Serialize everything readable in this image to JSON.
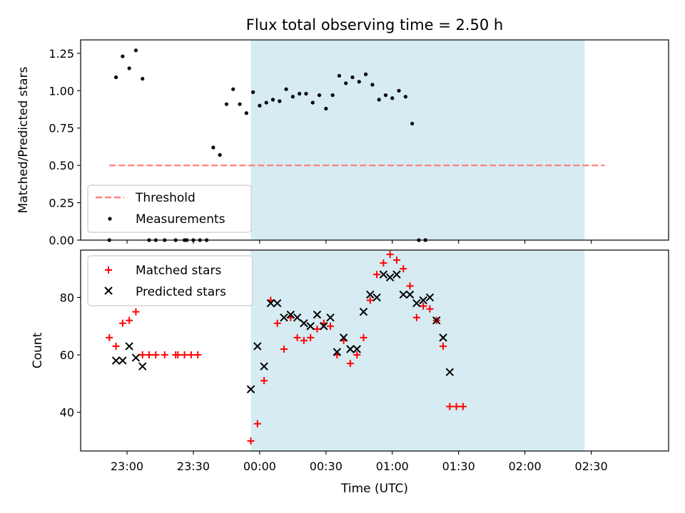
{
  "chart_data": [
    {
      "type": "scatter",
      "title": "Flux total observing time = 2.50 h",
      "xlabel": "",
      "ylabel": "Matched/Predicted stars",
      "xlim": [
        "22:39",
        "03:05"
      ],
      "ylim": [
        0,
        1.34
      ],
      "yticks": [
        0,
        0.25,
        0.5,
        0.75,
        1.0,
        1.25
      ],
      "ytick_labels": [
        "0.00",
        "0.25",
        "0.50",
        "0.75",
        "1.00",
        "1.25"
      ],
      "grid": false,
      "legend_position": "lower-left",
      "shaded_interval": [
        "23:56",
        "02:27"
      ],
      "threshold": {
        "name": "Threshold",
        "value": 0.5,
        "x_range": [
          "22:52",
          "02:36"
        ],
        "color": "#ff7f7f"
      },
      "series": [
        {
          "name": "Measurements",
          "color": "#000000",
          "points": [
            [
              "22:52",
              0.0
            ],
            [
              "22:55",
              1.09
            ],
            [
              "22:58",
              1.23
            ],
            [
              "23:01",
              1.15
            ],
            [
              "23:04",
              1.27
            ],
            [
              "23:07",
              1.08
            ],
            [
              "23:10",
              0.0
            ],
            [
              "23:13",
              0.0
            ],
            [
              "23:17",
              0.0
            ],
            [
              "23:22",
              0.0
            ],
            [
              "23:26",
              0.0
            ],
            [
              "23:27",
              0.0
            ],
            [
              "23:30",
              0.0
            ],
            [
              "23:33",
              0.0
            ],
            [
              "23:36",
              0.0
            ],
            [
              "23:39",
              0.62
            ],
            [
              "23:42",
              0.57
            ],
            [
              "23:45",
              0.91
            ],
            [
              "23:48",
              1.01
            ],
            [
              "23:51",
              0.91
            ],
            [
              "23:54",
              0.85
            ],
            [
              "23:57",
              0.99
            ],
            [
              "00:00",
              0.9
            ],
            [
              "00:03",
              0.92
            ],
            [
              "00:06",
              0.94
            ],
            [
              "00:09",
              0.93
            ],
            [
              "00:12",
              1.01
            ],
            [
              "00:15",
              0.96
            ],
            [
              "00:18",
              0.98
            ],
            [
              "00:21",
              0.98
            ],
            [
              "00:24",
              0.92
            ],
            [
              "00:27",
              0.97
            ],
            [
              "00:30",
              0.88
            ],
            [
              "00:33",
              0.97
            ],
            [
              "00:36",
              1.1
            ],
            [
              "00:39",
              1.05
            ],
            [
              "00:42",
              1.09
            ],
            [
              "00:45",
              1.06
            ],
            [
              "00:48",
              1.11
            ],
            [
              "00:51",
              1.04
            ],
            [
              "00:54",
              0.94
            ],
            [
              "00:57",
              0.97
            ],
            [
              "01:00",
              0.95
            ],
            [
              "01:03",
              1.0
            ],
            [
              "01:06",
              0.96
            ],
            [
              "01:09",
              0.78
            ],
            [
              "01:12",
              0.0
            ],
            [
              "01:15",
              0.0
            ]
          ]
        }
      ]
    },
    {
      "type": "scatter",
      "title": "",
      "xlabel": "Time (UTC)",
      "ylabel": "Count",
      "xlim": [
        "22:39",
        "03:05"
      ],
      "ylim": [
        26.5,
        96.5
      ],
      "yticks": [
        40,
        60,
        80
      ],
      "ytick_labels": [
        "40",
        "60",
        "80"
      ],
      "xticks": [
        "23:00",
        "23:30",
        "00:00",
        "00:30",
        "01:00",
        "01:30",
        "02:00",
        "02:30"
      ],
      "grid": false,
      "legend_position": "upper-left",
      "shaded_interval": [
        "23:56",
        "02:27"
      ],
      "series": [
        {
          "name": "Matched stars",
          "marker": "plus",
          "color": "#ff0000",
          "points": [
            [
              "22:52",
              66
            ],
            [
              "22:55",
              63
            ],
            [
              "22:58",
              71
            ],
            [
              "23:01",
              72
            ],
            [
              "23:04",
              75
            ],
            [
              "23:07",
              60
            ],
            [
              "23:10",
              60
            ],
            [
              "23:13",
              60
            ],
            [
              "23:17",
              60
            ],
            [
              "23:22",
              60
            ],
            [
              "23:23",
              60
            ],
            [
              "23:26",
              60
            ],
            [
              "23:29",
              60
            ],
            [
              "23:32",
              60
            ],
            [
              "23:56",
              30
            ],
            [
              "23:59",
              36
            ],
            [
              "00:02",
              51
            ],
            [
              "00:05",
              79
            ],
            [
              "00:08",
              71
            ],
            [
              "00:11",
              62
            ],
            [
              "00:14",
              73
            ],
            [
              "00:17",
              66
            ],
            [
              "00:20",
              65
            ],
            [
              "00:23",
              66
            ],
            [
              "00:26",
              69
            ],
            [
              "00:29",
              71
            ],
            [
              "00:32",
              70
            ],
            [
              "00:35",
              60
            ],
            [
              "00:38",
              65
            ],
            [
              "00:41",
              57
            ],
            [
              "00:44",
              60
            ],
            [
              "00:47",
              66
            ],
            [
              "00:50",
              79
            ],
            [
              "00:53",
              88
            ],
            [
              "00:56",
              92
            ],
            [
              "00:59",
              95
            ],
            [
              "01:02",
              93
            ],
            [
              "01:05",
              90
            ],
            [
              "01:08",
              84
            ],
            [
              "01:11",
              73
            ],
            [
              "01:14",
              77
            ],
            [
              "01:17",
              76
            ],
            [
              "01:20",
              72
            ],
            [
              "01:23",
              63
            ],
            [
              "01:26",
              42
            ],
            [
              "01:29",
              42
            ],
            [
              "01:32",
              42
            ]
          ]
        },
        {
          "name": "Predicted stars",
          "marker": "x",
          "color": "#000000",
          "points": [
            [
              "22:55",
              58
            ],
            [
              "22:58",
              58
            ],
            [
              "23:01",
              63
            ],
            [
              "23:04",
              59
            ],
            [
              "23:07",
              56
            ],
            [
              "23:56",
              48
            ],
            [
              "23:59",
              63
            ],
            [
              "00:02",
              56
            ],
            [
              "00:05",
              78
            ],
            [
              "00:08",
              78
            ],
            [
              "00:11",
              73
            ],
            [
              "00:14",
              74
            ],
            [
              "00:17",
              73
            ],
            [
              "00:20",
              71
            ],
            [
              "00:23",
              70
            ],
            [
              "00:26",
              74
            ],
            [
              "00:29",
              70
            ],
            [
              "00:32",
              73
            ],
            [
              "00:35",
              61
            ],
            [
              "00:38",
              66
            ],
            [
              "00:41",
              62
            ],
            [
              "00:44",
              62
            ],
            [
              "00:47",
              75
            ],
            [
              "00:50",
              81
            ],
            [
              "00:53",
              80
            ],
            [
              "00:56",
              88
            ],
            [
              "00:59",
              87
            ],
            [
              "01:02",
              88
            ],
            [
              "01:05",
              81
            ],
            [
              "01:08",
              81
            ],
            [
              "01:11",
              78
            ],
            [
              "01:14",
              79
            ],
            [
              "01:17",
              80
            ],
            [
              "01:20",
              72
            ],
            [
              "01:23",
              66
            ],
            [
              "01:26",
              54
            ]
          ]
        }
      ]
    }
  ]
}
